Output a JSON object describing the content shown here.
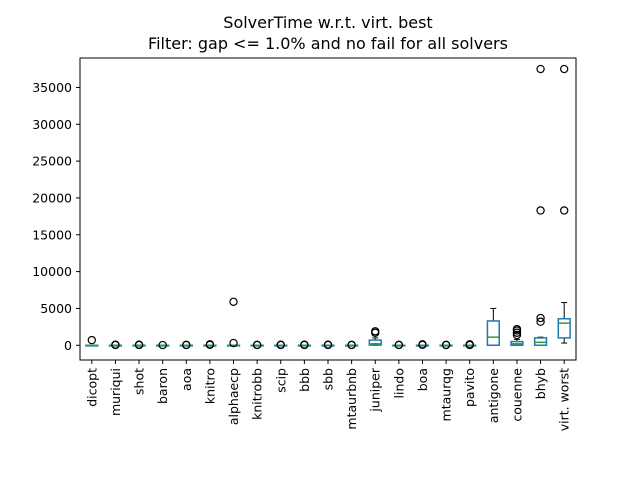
{
  "chart_data": {
    "type": "boxplot",
    "title": "SolverTime w.r.t. virt. best",
    "subtitle": "Filter: gap <= 1.0% and no fail for all solvers",
    "xlabel": "",
    "ylabel": "",
    "ylim": [
      -2000,
      39000
    ],
    "yticks": [
      0,
      5000,
      10000,
      15000,
      20000,
      25000,
      30000,
      35000
    ],
    "grid": false,
    "legend": "none",
    "colors": {
      "box": "#1f77b4",
      "median": "#2ca02c",
      "whisker": "#000000",
      "flier": "#000000"
    },
    "categories": [
      "dicopt",
      "muriqui",
      "shot",
      "baron",
      "aoa",
      "knitro",
      "alphaecp",
      "knitrobb",
      "scip",
      "bbb",
      "sbb",
      "mtaurbnb",
      "juniper",
      "lindo",
      "boa",
      "mtaurqg",
      "pavito",
      "antigone",
      "couenne",
      "bhyb",
      "virt. worst"
    ],
    "boxes": [
      {
        "q1": 0,
        "med": 0,
        "q3": 0,
        "whislo": 0,
        "whishi": 0,
        "fliers": [
          700
        ]
      },
      {
        "q1": 0,
        "med": 0,
        "q3": 0,
        "whislo": 0,
        "whishi": 0,
        "fliers": [
          40,
          80
        ]
      },
      {
        "q1": 0,
        "med": 0,
        "q3": 0,
        "whislo": 0,
        "whishi": 0,
        "fliers": [
          40,
          80
        ]
      },
      {
        "q1": 0,
        "med": 0,
        "q3": 0,
        "whislo": 0,
        "whishi": 0,
        "fliers": [
          30
        ]
      },
      {
        "q1": 0,
        "med": 0,
        "q3": 0,
        "whislo": 0,
        "whishi": 0,
        "fliers": [
          30,
          60
        ]
      },
      {
        "q1": 0,
        "med": 0,
        "q3": 0,
        "whislo": 0,
        "whishi": 0,
        "fliers": [
          60,
          120
        ]
      },
      {
        "q1": 0,
        "med": 0,
        "q3": 0,
        "whislo": 0,
        "whishi": 0,
        "fliers": [
          300,
          5900
        ]
      },
      {
        "q1": 0,
        "med": 0,
        "q3": 0,
        "whislo": 0,
        "whishi": 0,
        "fliers": [
          30,
          60
        ]
      },
      {
        "q1": 0,
        "med": 0,
        "q3": 0,
        "whislo": 0,
        "whishi": 0,
        "fliers": [
          40,
          80
        ]
      },
      {
        "q1": 0,
        "med": 0,
        "q3": 0,
        "whislo": 0,
        "whishi": 0,
        "fliers": [
          40,
          80
        ]
      },
      {
        "q1": 0,
        "med": 0,
        "q3": 0,
        "whislo": 0,
        "whishi": 0,
        "fliers": [
          40,
          80
        ]
      },
      {
        "q1": 0,
        "med": 0,
        "q3": 0,
        "whislo": 0,
        "whishi": 0,
        "fliers": [
          30,
          60
        ]
      },
      {
        "q1": 30,
        "med": 200,
        "q3": 700,
        "whislo": 0,
        "whishi": 1000,
        "fliers": [
          1700,
          1900
        ]
      },
      {
        "q1": 0,
        "med": 0,
        "q3": 0,
        "whislo": 0,
        "whishi": 0,
        "fliers": [
          30,
          60
        ]
      },
      {
        "q1": 0,
        "med": 0,
        "q3": 0,
        "whislo": 0,
        "whishi": 0,
        "fliers": [
          60,
          120
        ]
      },
      {
        "q1": 0,
        "med": 0,
        "q3": 0,
        "whislo": 0,
        "whishi": 0,
        "fliers": [
          30,
          60
        ]
      },
      {
        "q1": 0,
        "med": 0,
        "q3": 0,
        "whislo": 0,
        "whishi": 0,
        "fliers": [
          40,
          80,
          120
        ]
      },
      {
        "q1": 0,
        "med": 1100,
        "q3": 3300,
        "whislo": 0,
        "whishi": 5000,
        "fliers": []
      },
      {
        "q1": 0,
        "med": 200,
        "q3": 500,
        "whislo": 0,
        "whishi": 800,
        "fliers": [
          1400,
          1700,
          2000,
          2200
        ]
      },
      {
        "q1": 0,
        "med": 400,
        "q3": 1000,
        "whislo": 0,
        "whishi": 1100,
        "fliers": [
          3200,
          3700,
          18300,
          37500
        ]
      },
      {
        "q1": 1000,
        "med": 3000,
        "q3": 3600,
        "whislo": 300,
        "whishi": 5800,
        "fliers": [
          18300,
          37500
        ]
      }
    ]
  }
}
